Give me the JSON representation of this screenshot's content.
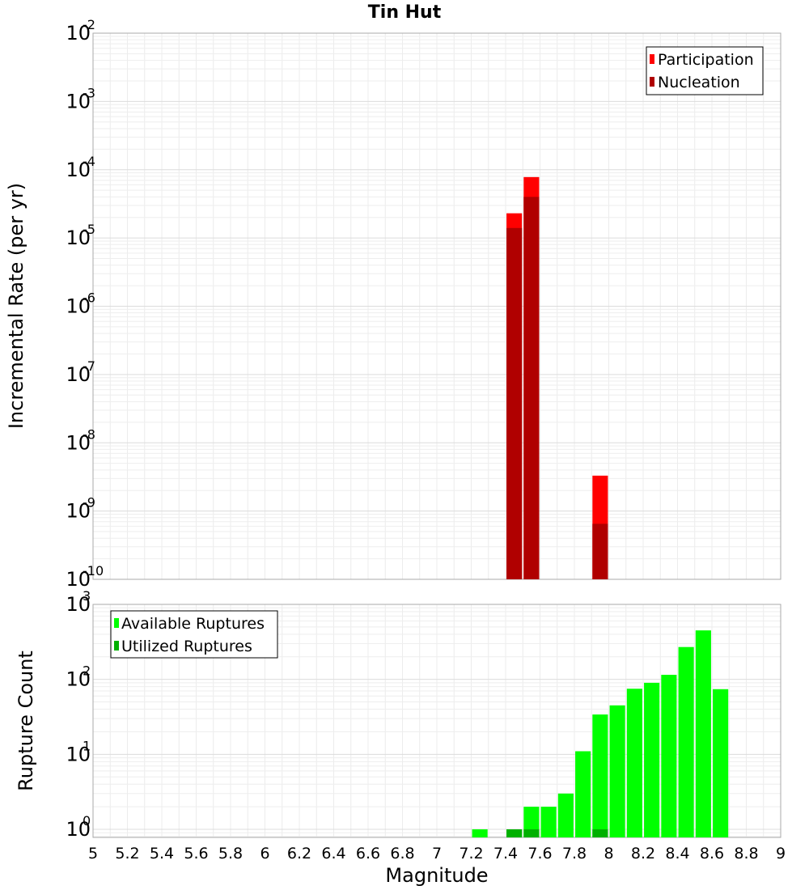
{
  "chart_data": [
    {
      "type": "bar",
      "title": "Tin Hut",
      "xlabel": "",
      "ylabel": "Incremental Rate (per yr)",
      "xlim": [
        5,
        9
      ],
      "ylim": [
        1e-10,
        0.01
      ],
      "y_scale": "log",
      "y_tick_exponents": [
        "-2",
        "-3",
        "-4",
        "-5",
        "-6",
        "-7",
        "-8",
        "-9",
        "-10"
      ],
      "grid": true,
      "legend_position": "top-right",
      "bar_width": 0.09,
      "colors": {
        "Participation": "#ff0000",
        "Nucleation": "#b00000"
      },
      "series": [
        {
          "name": "Participation",
          "x": [
            7.45,
            7.55,
            7.95
          ],
          "values": [
            2.3e-05,
            7.8e-05,
            3.3e-09
          ]
        },
        {
          "name": "Nucleation",
          "x": [
            7.45,
            7.55,
            7.95
          ],
          "values": [
            1.4e-05,
            4e-05,
            6.5e-10
          ]
        }
      ]
    },
    {
      "type": "bar",
      "title": "",
      "xlabel": "Magnitude",
      "ylabel": "Rupture Count",
      "xlim": [
        5,
        9
      ],
      "ylim": [
        0.78,
        1000
      ],
      "y_scale": "log",
      "y_tick_exponents": [
        "3",
        "2",
        "1",
        "0"
      ],
      "x_ticks": [
        "5",
        "5.2",
        "5.4",
        "5.6",
        "5.8",
        "6",
        "6.2",
        "6.4",
        "6.6",
        "6.8",
        "7",
        "7.2",
        "7.4",
        "7.6",
        "7.8",
        "8",
        "8.2",
        "8.4",
        "8.6",
        "8.8",
        "9"
      ],
      "grid": true,
      "legend_position": "top-left",
      "bar_width": 0.09,
      "colors": {
        "Available Ruptures": "#00ff00",
        "Utilized Ruptures": "#00b000"
      },
      "series": [
        {
          "name": "Available Ruptures",
          "x": [
            7.25,
            7.45,
            7.55,
            7.65,
            7.75,
            7.85,
            7.95,
            8.05,
            8.15,
            8.25,
            8.35,
            8.45,
            8.55,
            8.65
          ],
          "values": [
            1,
            1,
            2,
            2,
            3,
            11,
            34,
            45,
            75,
            90,
            115,
            270,
            450,
            74
          ]
        },
        {
          "name": "Utilized Ruptures",
          "x": [
            7.45,
            7.55,
            7.95
          ],
          "values": [
            1,
            1,
            1
          ]
        }
      ]
    }
  ]
}
